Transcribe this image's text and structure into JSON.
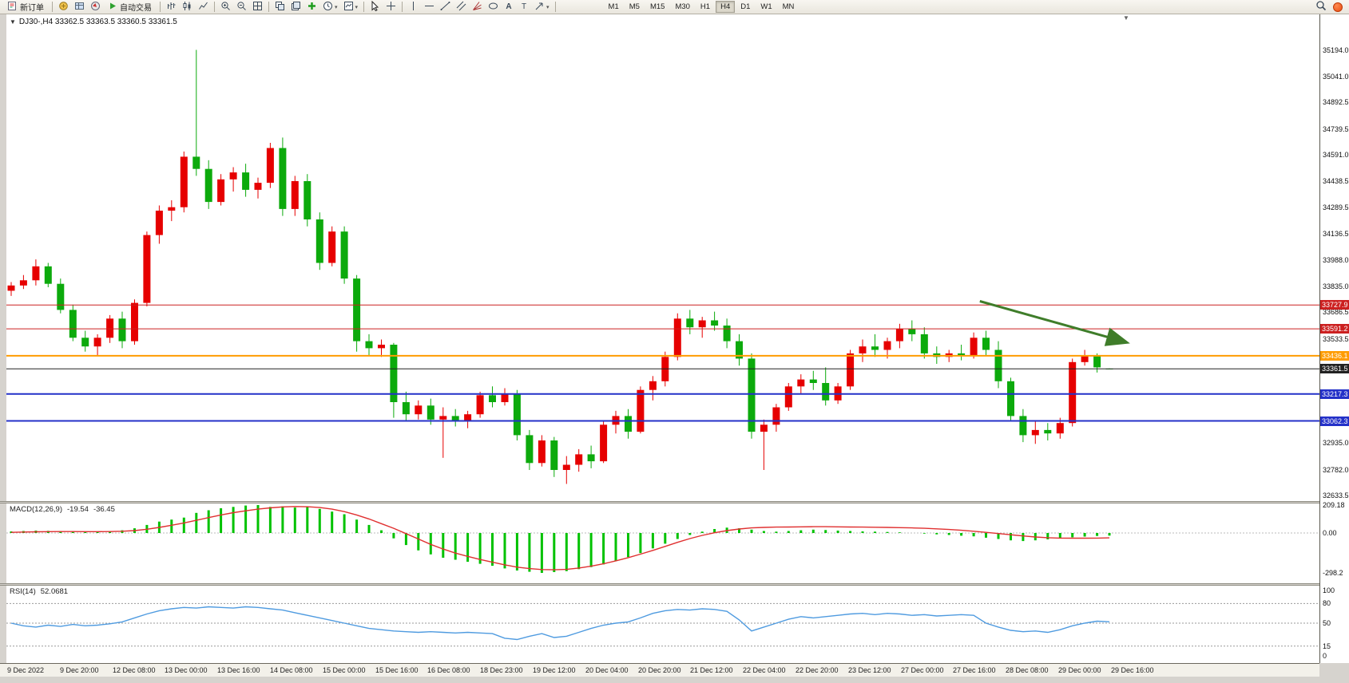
{
  "ui": {
    "toolbar": {
      "new_order": "新订单",
      "autotrading": "自动交易",
      "timeframes": [
        "M1",
        "M5",
        "M15",
        "M30",
        "H1",
        "H4",
        "D1",
        "W1",
        "MN"
      ],
      "active_timeframe": "H4"
    },
    "chart_title": "DJ30-,H4 33362.5 33363.5 33360.5 33361.5",
    "macd_header": {
      "name": "MACD(12,26,9)",
      "main": "-19.54",
      "signal": "-36.45"
    },
    "rsi_header": {
      "name": "RSI(14)",
      "value": "52.0681"
    }
  },
  "chart_data": {
    "type": "candlestick",
    "symbol": "DJ30-",
    "period": "H4",
    "current_bar": {
      "open": 33362.5,
      "high": 33363.5,
      "low": 33360.5,
      "close": 33361.5
    },
    "price_range": {
      "top": 35194.0,
      "bottom": 32633.5
    },
    "colors": {
      "up": "#e60000",
      "down": "#0caa0c",
      "macd_bar": "#00c200",
      "macd_signal": "#e03030",
      "rsi_line": "#4f9be0",
      "arrow": "#3f7d2a"
    },
    "price_axis": {
      "labels": [
        "35194.0",
        "35041.0",
        "34892.5",
        "34739.5",
        "34591.0",
        "34438.5",
        "34289.5",
        "34136.5",
        "33988.0",
        "33835.0",
        "33686.5",
        "33533.5",
        "32935.0",
        "32782.0",
        "32633.5"
      ]
    },
    "hlines": [
      {
        "price": "33727.9",
        "color": "#cc2020",
        "width": 1
      },
      {
        "price": "33591.2",
        "color": "#cc2020",
        "width": 1
      },
      {
        "price": "33436.1",
        "color": "#ff9c00",
        "width": 2
      },
      {
        "price": "33361.5",
        "color": "#222222",
        "width": 1
      },
      {
        "price": "33217.3",
        "color": "#2431c8",
        "width": 2
      },
      {
        "price": "33062.3",
        "color": "#2431c8",
        "width": 2
      }
    ],
    "trend_arrow": {
      "from_bar": 78.5,
      "from_price": 33750,
      "to_bar": 90.3,
      "to_price": 33515
    },
    "candles": [
      [
        33810,
        33860,
        33780,
        33840
      ],
      [
        33840,
        33900,
        33820,
        33870
      ],
      [
        33870,
        33990,
        33840,
        33950
      ],
      [
        33950,
        33970,
        33830,
        33850
      ],
      [
        33850,
        33880,
        33680,
        33700
      ],
      [
        33700,
        33730,
        33520,
        33540
      ],
      [
        33540,
        33580,
        33460,
        33490
      ],
      [
        33490,
        33560,
        33440,
        33540
      ],
      [
        33540,
        33670,
        33510,
        33650
      ],
      [
        33650,
        33690,
        33480,
        33520
      ],
      [
        33520,
        33760,
        33500,
        33740
      ],
      [
        33740,
        34150,
        33720,
        34130
      ],
      [
        34130,
        34300,
        34080,
        34270
      ],
      [
        34270,
        34330,
        34210,
        34290
      ],
      [
        34290,
        34610,
        34260,
        34580
      ],
      [
        34580,
        35194,
        34470,
        34510
      ],
      [
        34510,
        34560,
        34280,
        34320
      ],
      [
        34320,
        34480,
        34300,
        34450
      ],
      [
        34450,
        34520,
        34380,
        34490
      ],
      [
        34490,
        34540,
        34350,
        34390
      ],
      [
        34390,
        34460,
        34340,
        34430
      ],
      [
        34430,
        34660,
        34400,
        34630
      ],
      [
        34630,
        34690,
        34240,
        34280
      ],
      [
        34280,
        34470,
        34240,
        34440
      ],
      [
        34440,
        34480,
        34180,
        34220
      ],
      [
        34220,
        34260,
        33930,
        33970
      ],
      [
        33970,
        34180,
        33950,
        34150
      ],
      [
        34150,
        34180,
        33850,
        33880
      ],
      [
        33880,
        33900,
        33460,
        33520
      ],
      [
        33520,
        33560,
        33440,
        33480
      ],
      [
        33480,
        33530,
        33430,
        33500
      ],
      [
        33500,
        33510,
        33080,
        33170
      ],
      [
        33170,
        33230,
        33060,
        33100
      ],
      [
        33100,
        33180,
        33070,
        33150
      ],
      [
        33150,
        33190,
        33040,
        33070
      ],
      [
        33070,
        33140,
        32850,
        33090
      ],
      [
        33090,
        33130,
        33030,
        33060
      ],
      [
        33060,
        33120,
        33020,
        33100
      ],
      [
        33100,
        33230,
        33080,
        33210
      ],
      [
        33210,
        33260,
        33140,
        33170
      ],
      [
        33170,
        33250,
        33150,
        33220
      ],
      [
        33220,
        33240,
        32950,
        32980
      ],
      [
        32980,
        33010,
        32780,
        32820
      ],
      [
        32820,
        32980,
        32800,
        32950
      ],
      [
        32950,
        32970,
        32740,
        32780
      ],
      [
        32780,
        32860,
        32700,
        32810
      ],
      [
        32810,
        32900,
        32770,
        32870
      ],
      [
        32870,
        32920,
        32790,
        32830
      ],
      [
        32830,
        33060,
        32820,
        33040
      ],
      [
        33040,
        33120,
        32990,
        33090
      ],
      [
        33090,
        33130,
        32960,
        33000
      ],
      [
        33000,
        33260,
        32990,
        33240
      ],
      [
        33240,
        33320,
        33180,
        33290
      ],
      [
        33290,
        33460,
        33260,
        33430
      ],
      [
        33430,
        33680,
        33410,
        33650
      ],
      [
        33650,
        33700,
        33560,
        33600
      ],
      [
        33600,
        33660,
        33540,
        33640
      ],
      [
        33640,
        33690,
        33580,
        33610
      ],
      [
        33610,
        33650,
        33480,
        33520
      ],
      [
        33520,
        33560,
        33380,
        33420
      ],
      [
        33420,
        33450,
        32960,
        33000
      ],
      [
        33000,
        33070,
        32780,
        33040
      ],
      [
        33040,
        33160,
        33000,
        33140
      ],
      [
        33140,
        33280,
        33120,
        33260
      ],
      [
        33260,
        33330,
        33220,
        33300
      ],
      [
        33300,
        33350,
        33240,
        33280
      ],
      [
        33280,
        33370,
        33150,
        33180
      ],
      [
        33180,
        33280,
        33160,
        33260
      ],
      [
        33260,
        33470,
        33240,
        33450
      ],
      [
        33450,
        33530,
        33400,
        33490
      ],
      [
        33490,
        33560,
        33430,
        33470
      ],
      [
        33470,
        33540,
        33420,
        33520
      ],
      [
        33520,
        33620,
        33480,
        33590
      ],
      [
        33590,
        33640,
        33520,
        33560
      ],
      [
        33560,
        33600,
        33420,
        33450
      ],
      [
        33450,
        33490,
        33390,
        33430
      ],
      [
        33430,
        33470,
        33400,
        33450
      ],
      [
        33450,
        33500,
        33410,
        33440
      ],
      [
        33440,
        33570,
        33420,
        33540
      ],
      [
        33540,
        33580,
        33440,
        33470
      ],
      [
        33470,
        33520,
        33250,
        33290
      ],
      [
        33290,
        33310,
        33060,
        33090
      ],
      [
        33090,
        33130,
        32940,
        32980
      ],
      [
        32980,
        33060,
        32930,
        33010
      ],
      [
        33010,
        33050,
        32950,
        32990
      ],
      [
        32990,
        33080,
        32960,
        33050
      ],
      [
        33050,
        33420,
        33030,
        33400
      ],
      [
        33400,
        33470,
        33380,
        33440
      ],
      [
        33440,
        33450,
        33340,
        33370
      ],
      [
        33362.5,
        33363.5,
        33360.5,
        33361.5
      ]
    ],
    "macd": {
      "params": "12,26,9",
      "axis_labels": [
        "209.18",
        "0.00",
        "-298.2"
      ],
      "max": 209.18,
      "min": -298.2,
      "histogram": [
        12,
        15,
        18,
        16,
        14,
        10,
        8,
        10,
        14,
        20,
        35,
        60,
        85,
        100,
        115,
        150,
        170,
        185,
        195,
        205,
        209,
        195,
        200,
        190,
        195,
        180,
        160,
        140,
        100,
        60,
        20,
        -40,
        -90,
        -130,
        -160,
        -185,
        -200,
        -215,
        -230,
        -245,
        -265,
        -280,
        -290,
        -298,
        -292,
        -285,
        -270,
        -255,
        -235,
        -210,
        -180,
        -150,
        -115,
        -80,
        -45,
        -15,
        10,
        30,
        40,
        35,
        25,
        15,
        10,
        15,
        20,
        25,
        22,
        18,
        15,
        12,
        10,
        8,
        5,
        0,
        -5,
        -10,
        -15,
        -20,
        -25,
        -35,
        -45,
        -55,
        -60,
        -55,
        -48,
        -40,
        -32,
        -27,
        -22,
        -19.54
      ],
      "signal": [
        5,
        7,
        9,
        10,
        11,
        11,
        10,
        10,
        11,
        13,
        18,
        28,
        42,
        58,
        75,
        95,
        115,
        135,
        152,
        166,
        178,
        188,
        195,
        198,
        196,
        190,
        178,
        160,
        135,
        105,
        70,
        35,
        -5,
        -45,
        -85,
        -120,
        -150,
        -175,
        -198,
        -218,
        -238,
        -255,
        -266,
        -273,
        -275,
        -272,
        -262,
        -248,
        -230,
        -208,
        -184,
        -158,
        -130,
        -100,
        -70,
        -42,
        -18,
        2,
        18,
        30,
        38,
        42,
        44,
        45,
        46,
        47,
        47,
        46,
        45,
        44,
        43,
        42,
        40,
        38,
        35,
        31,
        26,
        20,
        13,
        5,
        -4,
        -13,
        -22,
        -30,
        -35,
        -38,
        -39,
        -39,
        -38,
        -36.45
      ]
    },
    "rsi": {
      "period": 14,
      "levels": [
        100,
        80,
        50,
        15,
        0
      ],
      "values": [
        50,
        46,
        44,
        47,
        45,
        48,
        46,
        47,
        49,
        52,
        58,
        64,
        69,
        72,
        74,
        73,
        75,
        74,
        73,
        75,
        74,
        72,
        70,
        66,
        62,
        58,
        54,
        50,
        46,
        42,
        40,
        38,
        37,
        36,
        37,
        36,
        35,
        36,
        35,
        34,
        27,
        25,
        30,
        34,
        28,
        30,
        36,
        42,
        47,
        50,
        52,
        58,
        65,
        69,
        71,
        70,
        72,
        71,
        68,
        55,
        38,
        44,
        50,
        56,
        60,
        58,
        60,
        62,
        64,
        65,
        63,
        65,
        64,
        62,
        63,
        61,
        62,
        63,
        62,
        50,
        44,
        39,
        37,
        38,
        36,
        40,
        46,
        50,
        53,
        52.07
      ]
    },
    "time_axis": {
      "labels": [
        "9 Dec 2022",
        "9 Dec 20:00",
        "12 Dec 08:00",
        "13 Dec 00:00",
        "13 Dec 16:00",
        "14 Dec 08:00",
        "15 Dec 00:00",
        "15 Dec 16:00",
        "16 Dec 08:00",
        "18 Dec 23:00",
        "19 Dec 12:00",
        "20 Dec 04:00",
        "20 Dec 20:00",
        "21 Dec 12:00",
        "22 Dec 04:00",
        "22 Dec 20:00",
        "23 Dec 12:00",
        "27 Dec 00:00",
        "27 Dec 16:00",
        "28 Dec 08:00",
        "29 Dec 00:00",
        "29 Dec 16:00"
      ]
    }
  }
}
